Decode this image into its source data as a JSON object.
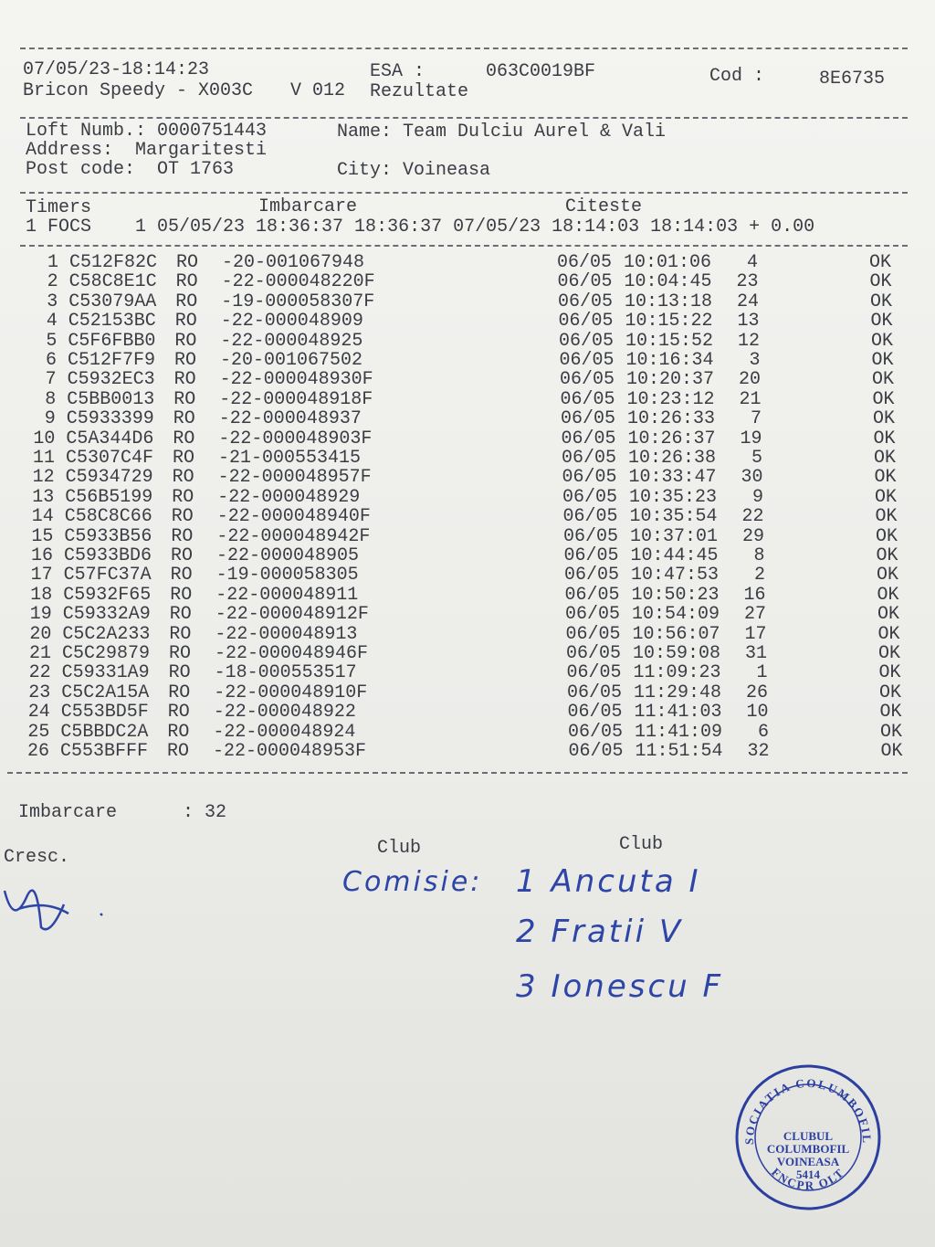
{
  "header": {
    "timestamp": "07/05/23-18:14:23",
    "device": "Bricon Speedy - X003C",
    "version": "V 012",
    "esa_label": "ESA :",
    "esa_value": "063C0019BF",
    "report": "Rezultate",
    "cod_label": "Cod :",
    "cod_value": "8E6735"
  },
  "owner": {
    "loft": "Loft Numb.: 0000751443",
    "name": "Name: Team Dulciu Aurel & Vali",
    "address": "Address:  Margaritesti",
    "post_code": "Post code:  OT 1763",
    "city": "City: Voineasa"
  },
  "timers": {
    "headers": [
      "Timers",
      "Imbarcare",
      "Citeste"
    ],
    "row": "1 FOCS    1 05/05/23 18:36:37 18:36:37 07/05/23 18:14:03 18:14:03 + 0.00"
  },
  "table": {
    "rows": [
      [
        1,
        "C512F82C",
        "RO",
        "-20-001067948",
        "06/05",
        "10:01:06",
        4,
        "OK"
      ],
      [
        2,
        "C58C8E1C",
        "RO",
        "-22-000048220F",
        "06/05",
        "10:04:45",
        23,
        "OK"
      ],
      [
        3,
        "C53079AA",
        "RO",
        "-19-000058307F",
        "06/05",
        "10:13:18",
        24,
        "OK"
      ],
      [
        4,
        "C52153BC",
        "RO",
        "-22-000048909",
        "06/05",
        "10:15:22",
        13,
        "OK"
      ],
      [
        5,
        "C5F6FBB0",
        "RO",
        "-22-000048925",
        "06/05",
        "10:15:52",
        12,
        "OK"
      ],
      [
        6,
        "C512F7F9",
        "RO",
        "-20-001067502",
        "06/05",
        "10:16:34",
        3,
        "OK"
      ],
      [
        7,
        "C5932EC3",
        "RO",
        "-22-000048930F",
        "06/05",
        "10:20:37",
        20,
        "OK"
      ],
      [
        8,
        "C5BB0013",
        "RO",
        "-22-000048918F",
        "06/05",
        "10:23:12",
        21,
        "OK"
      ],
      [
        9,
        "C5933399",
        "RO",
        "-22-000048937",
        "06/05",
        "10:26:33",
        7,
        "OK"
      ],
      [
        10,
        "C5A344D6",
        "RO",
        "-22-000048903F",
        "06/05",
        "10:26:37",
        19,
        "OK"
      ],
      [
        11,
        "C5307C4F",
        "RO",
        "-21-000553415",
        "06/05",
        "10:26:38",
        5,
        "OK"
      ],
      [
        12,
        "C5934729",
        "RO",
        "-22-000048957F",
        "06/05",
        "10:33:47",
        30,
        "OK"
      ],
      [
        13,
        "C56B5199",
        "RO",
        "-22-000048929",
        "06/05",
        "10:35:23",
        9,
        "OK"
      ],
      [
        14,
        "C58C8C66",
        "RO",
        "-22-000048940F",
        "06/05",
        "10:35:54",
        22,
        "OK"
      ],
      [
        15,
        "C5933B56",
        "RO",
        "-22-000048942F",
        "06/05",
        "10:37:01",
        29,
        "OK"
      ],
      [
        16,
        "C5933BD6",
        "RO",
        "-22-000048905",
        "06/05",
        "10:44:45",
        8,
        "OK"
      ],
      [
        17,
        "C57FC37A",
        "RO",
        "-19-000058305",
        "06/05",
        "10:47:53",
        2,
        "OK"
      ],
      [
        18,
        "C5932F65",
        "RO",
        "-22-000048911",
        "06/05",
        "10:50:23",
        16,
        "OK"
      ],
      [
        19,
        "C59332A9",
        "RO",
        "-22-000048912F",
        "06/05",
        "10:54:09",
        27,
        "OK"
      ],
      [
        20,
        "C5C2A233",
        "RO",
        "-22-000048913",
        "06/05",
        "10:56:07",
        17,
        "OK"
      ],
      [
        21,
        "C5C29879",
        "RO",
        "-22-000048946F",
        "06/05",
        "10:59:08",
        31,
        "OK"
      ],
      [
        22,
        "C59331A9",
        "RO",
        "-18-000553517",
        "06/05",
        "11:09:23",
        1,
        "OK"
      ],
      [
        23,
        "C5C2A15A",
        "RO",
        "-22-000048910F",
        "06/05",
        "11:29:48",
        26,
        "OK"
      ],
      [
        24,
        "C553BD5F",
        "RO",
        "-22-000048922",
        "06/05",
        "11:41:03",
        10,
        "OK"
      ],
      [
        25,
        "C5BBDC2A",
        "RO",
        "-22-000048924",
        "06/05",
        "11:41:09",
        6,
        "OK"
      ],
      [
        26,
        "C553BFFF",
        "RO",
        "-22-000048953F",
        "06/05",
        "11:51:54",
        32,
        "OK"
      ]
    ]
  },
  "footer": {
    "imbarcare": "Imbarcare      : 32",
    "cresc": "Cresc.",
    "club_1": "Club",
    "club_2": "Club"
  },
  "handwriting": {
    "title": "Comisie:",
    "members": [
      "1 Ancuta I",
      "2 Fratii V",
      "3 Ionescu F"
    ]
  },
  "stamp": {
    "ring_top": "ASOCIATIA COLUMBOFILA",
    "ring_bottom": "FNCPR OLT",
    "lines": [
      "CLUBUL",
      "COLUMBOFIL",
      "VOINEASA",
      "5414"
    ]
  }
}
